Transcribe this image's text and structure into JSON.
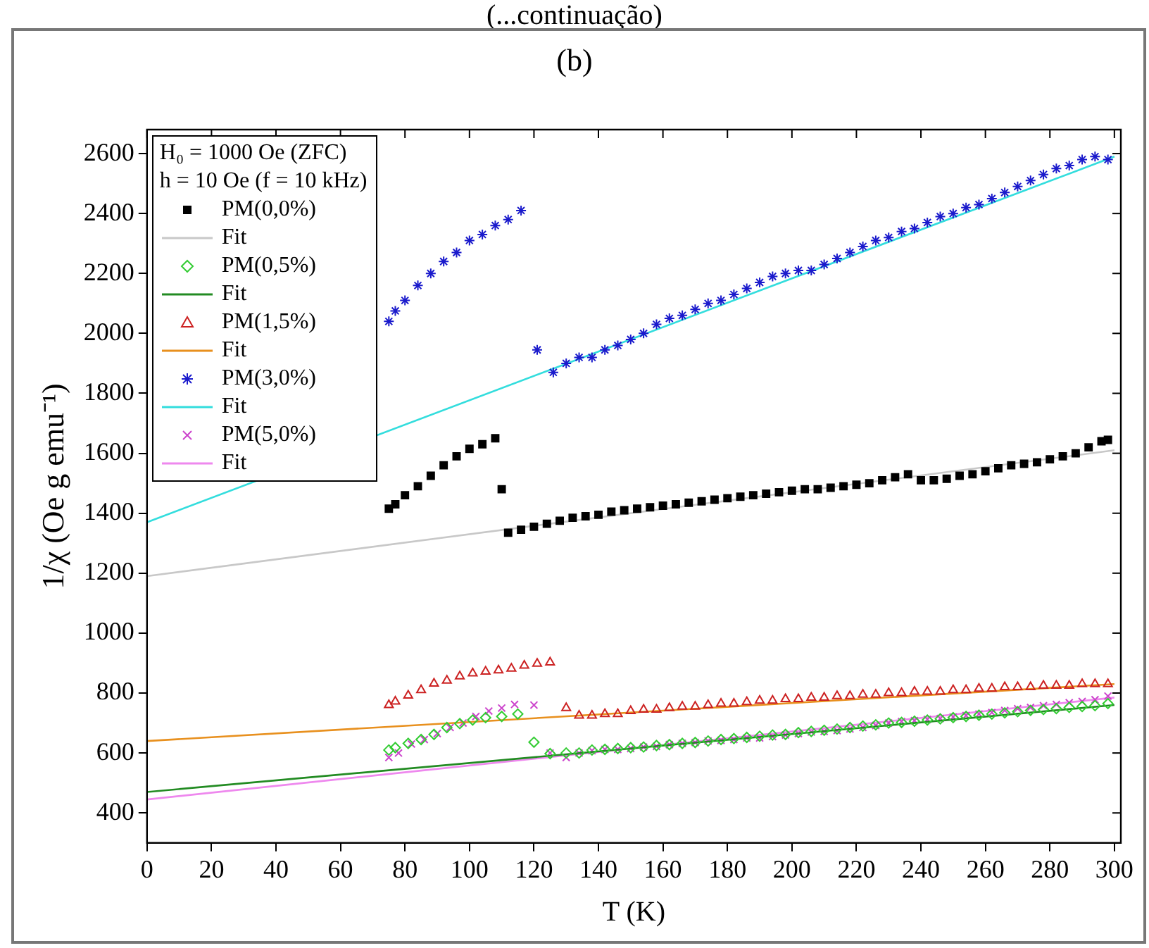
{
  "chart_data": {
    "type": "scatter",
    "title": "(b)",
    "xlabel": "T (K)",
    "ylabel": "1/χ (Oe g emu⁻¹)",
    "legend_title": "H₀ = 1000 Oe (ZFC)\nh = 10 Oe (f = 10 kHz)",
    "annotations": [
      "(...continuação)"
    ],
    "xlim": [
      0,
      302
    ],
    "ylim": [
      300,
      2680
    ],
    "xticks": [
      0,
      20,
      40,
      60,
      80,
      100,
      120,
      140,
      160,
      180,
      200,
      220,
      240,
      260,
      280,
      300
    ],
    "yticks": [
      400,
      600,
      800,
      1000,
      1200,
      1400,
      1600,
      1800,
      2000,
      2200,
      2400,
      2600
    ],
    "grid": false,
    "legend": "top left",
    "series": [
      {
        "name": "PM(0,0%)",
        "marker": "square",
        "color": "#000000",
        "x": [
          75,
          77,
          80,
          84,
          88,
          92,
          96,
          100,
          104,
          108,
          110,
          112,
          116,
          120,
          124,
          128,
          132,
          136,
          140,
          144,
          148,
          152,
          156,
          160,
          164,
          168,
          172,
          176,
          180,
          184,
          188,
          192,
          196,
          200,
          204,
          208,
          212,
          216,
          220,
          224,
          228,
          232,
          236,
          240,
          244,
          248,
          252,
          256,
          260,
          264,
          268,
          272,
          276,
          280,
          284,
          288,
          292,
          296,
          298
        ],
        "values": [
          1415,
          1430,
          1460,
          1490,
          1525,
          1560,
          1590,
          1615,
          1630,
          1650,
          1480,
          1335,
          1345,
          1355,
          1365,
          1375,
          1385,
          1390,
          1395,
          1405,
          1410,
          1415,
          1420,
          1425,
          1430,
          1435,
          1440,
          1445,
          1450,
          1455,
          1460,
          1465,
          1470,
          1475,
          1480,
          1480,
          1485,
          1490,
          1495,
          1500,
          1510,
          1520,
          1530,
          1510,
          1510,
          1515,
          1525,
          1530,
          1540,
          1550,
          1560,
          1565,
          1570,
          1580,
          1590,
          1600,
          1620,
          1640,
          1645
        ]
      },
      {
        "name": "Fit",
        "type": "line",
        "marker": "none",
        "color": "#c8c8c8",
        "x": [
          0,
          300
        ],
        "values": [
          1190,
          1610
        ]
      },
      {
        "name": "PM(0,5%)",
        "marker": "diamond",
        "color": "#33cc33",
        "x": [
          75,
          77,
          81,
          85,
          89,
          93,
          97,
          101,
          105,
          110,
          115,
          120,
          125,
          130,
          134,
          138,
          142,
          146,
          150,
          154,
          158,
          162,
          166,
          170,
          174,
          178,
          182,
          186,
          190,
          194,
          198,
          202,
          206,
          210,
          214,
          218,
          222,
          226,
          230,
          234,
          238,
          242,
          246,
          250,
          254,
          258,
          262,
          266,
          270,
          274,
          278,
          282,
          286,
          290,
          294,
          298
        ],
        "values": [
          610,
          618,
          632,
          645,
          662,
          685,
          698,
          710,
          718,
          722,
          730,
          636,
          598,
          600,
          600,
          610,
          612,
          615,
          618,
          620,
          625,
          628,
          632,
          635,
          640,
          645,
          648,
          652,
          656,
          660,
          662,
          668,
          672,
          676,
          680,
          685,
          690,
          694,
          700,
          702,
          706,
          710,
          714,
          718,
          722,
          726,
          730,
          734,
          738,
          742,
          745,
          748,
          752,
          755,
          758,
          765
        ]
      },
      {
        "name": "Fit",
        "type": "line",
        "marker": "none",
        "color": "#228b22",
        "x": [
          0,
          300
        ],
        "values": [
          470,
          760
        ]
      },
      {
        "name": "PM(1,5%)",
        "marker": "triangle",
        "color": "#cc2222",
        "x": [
          75,
          77,
          81,
          85,
          89,
          93,
          97,
          101,
          105,
          109,
          113,
          117,
          121,
          125,
          130,
          134,
          138,
          142,
          146,
          150,
          154,
          158,
          162,
          166,
          170,
          174,
          178,
          182,
          186,
          190,
          194,
          198,
          202,
          206,
          210,
          214,
          218,
          222,
          226,
          230,
          234,
          238,
          242,
          246,
          250,
          254,
          258,
          262,
          266,
          270,
          274,
          278,
          282,
          286,
          290,
          294,
          298
        ],
        "values": [
          760,
          772,
          792,
          810,
          832,
          842,
          856,
          866,
          872,
          876,
          882,
          892,
          898,
          902,
          750,
          725,
          725,
          730,
          730,
          740,
          745,
          745,
          750,
          755,
          755,
          760,
          765,
          765,
          770,
          775,
          775,
          780,
          780,
          785,
          785,
          790,
          790,
          795,
          795,
          800,
          800,
          805,
          805,
          805,
          810,
          810,
          815,
          815,
          820,
          820,
          820,
          825,
          825,
          825,
          830,
          830,
          830
        ]
      },
      {
        "name": "Fit",
        "type": "line",
        "marker": "none",
        "color": "#e8901e",
        "x": [
          0,
          300
        ],
        "values": [
          640,
          830
        ]
      },
      {
        "name": "PM(3,0%)",
        "color": "#1a1acc",
        "x": [
          75,
          77,
          80,
          84,
          88,
          92,
          96,
          100,
          104,
          108,
          112,
          116,
          121,
          126,
          130,
          134,
          138,
          142,
          146,
          150,
          154,
          158,
          162,
          166,
          170,
          174,
          178,
          182,
          186,
          190,
          194,
          198,
          202,
          206,
          210,
          214,
          218,
          222,
          226,
          230,
          234,
          238,
          242,
          246,
          250,
          254,
          258,
          262,
          266,
          270,
          274,
          278,
          282,
          286,
          290,
          294,
          298
        ],
        "values": [
          2040,
          2075,
          2110,
          2160,
          2200,
          2240,
          2270,
          2310,
          2330,
          2360,
          2380,
          2410,
          1945,
          1870,
          1900,
          1920,
          1920,
          1945,
          1960,
          1980,
          2000,
          2030,
          2050,
          2060,
          2080,
          2100,
          2110,
          2130,
          2150,
          2170,
          2190,
          2200,
          2210,
          2210,
          2230,
          2250,
          2270,
          2290,
          2310,
          2320,
          2340,
          2350,
          2370,
          2390,
          2400,
          2420,
          2430,
          2450,
          2470,
          2490,
          2510,
          2530,
          2550,
          2560,
          2580,
          2590,
          2580
        ]
      },
      {
        "name": "Fit",
        "type": "line",
        "marker": "none",
        "color": "#33dddd",
        "x": [
          0,
          300
        ],
        "values": [
          1370,
          2590
        ]
      },
      {
        "name": "PM(5,0%)",
        "marker": "cross",
        "color": "#cc44cc",
        "x": [
          75,
          78,
          82,
          86,
          90,
          94,
          98,
          102,
          106,
          110,
          114,
          120,
          125,
          130,
          134,
          138,
          142,
          146,
          150,
          154,
          158,
          162,
          166,
          170,
          174,
          178,
          182,
          186,
          190,
          194,
          198,
          202,
          206,
          210,
          214,
          218,
          222,
          226,
          230,
          234,
          238,
          242,
          246,
          250,
          254,
          258,
          262,
          266,
          270,
          274,
          278,
          282,
          286,
          290,
          294,
          298
        ],
        "values": [
          585,
          600,
          630,
          645,
          665,
          685,
          700,
          722,
          740,
          750,
          762,
          760,
          600,
          585,
          600,
          608,
          612,
          612,
          615,
          620,
          622,
          628,
          632,
          635,
          640,
          642,
          645,
          650,
          650,
          655,
          660,
          665,
          670,
          672,
          675,
          680,
          685,
          692,
          700,
          705,
          708,
          712,
          715,
          720,
          725,
          730,
          735,
          742,
          748,
          752,
          758,
          762,
          768,
          772,
          778,
          790
        ]
      },
      {
        "name": "Fit",
        "type": "line",
        "marker": "none",
        "color": "#ee88ee",
        "x": [
          0,
          300
        ],
        "values": [
          445,
          785
        ]
      }
    ]
  }
}
